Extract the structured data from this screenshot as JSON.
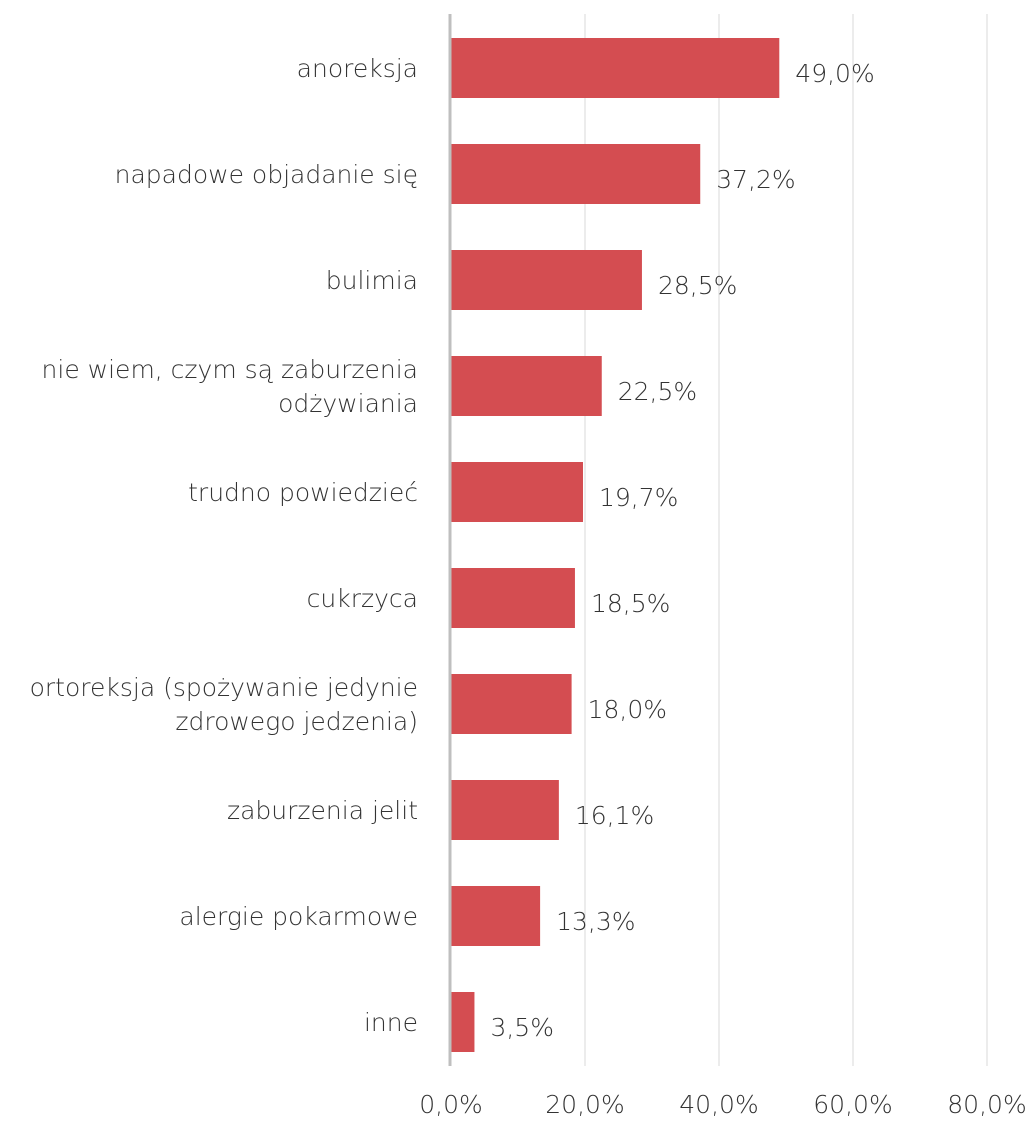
{
  "chart_data": {
    "type": "bar",
    "orientation": "horizontal",
    "categories": [
      [
        "anoreksja"
      ],
      [
        "napadowe objadanie się"
      ],
      [
        "bulimia"
      ],
      [
        "nie wiem, czym są zaburzenia",
        "odżywiania"
      ],
      [
        "trudno powiedzieć"
      ],
      [
        "cukrzyca"
      ],
      [
        "ortoreksja (spożywanie jedynie",
        "zdrowego jedzenia)"
      ],
      [
        "zaburzenia jelit"
      ],
      [
        "alergie pokarmowe"
      ],
      [
        "inne"
      ]
    ],
    "values": [
      49.0,
      37.2,
      28.5,
      22.5,
      19.7,
      18.5,
      18.0,
      16.1,
      13.3,
      3.5
    ],
    "value_labels": [
      "49,0%",
      "37,2%",
      "28,5%",
      "22,5%",
      "19,7%",
      "18,5%",
      "18,0%",
      "16,1%",
      "13,3%",
      "3,5%"
    ],
    "xlim": [
      0,
      80
    ],
    "x_ticks": [
      0,
      20,
      40,
      60,
      80
    ],
    "x_tick_labels": [
      "0,0%",
      "20,0%",
      "40,0%",
      "60,0%",
      "80,0%"
    ],
    "grid": "vertical",
    "bar_color": "#d44d51",
    "grid_color": "#e6e6e6",
    "axis_color": "#bfbfbf"
  }
}
